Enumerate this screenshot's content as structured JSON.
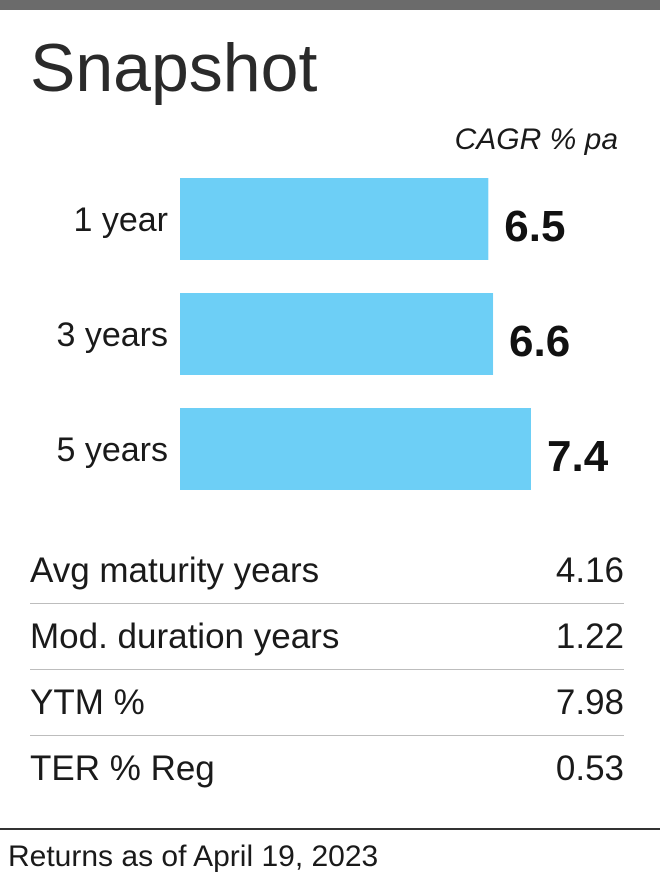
{
  "title": "Snapshot",
  "unit_label": "CAGR % pa",
  "colors": {
    "bar": "#6DCFF6",
    "top_rule": "#6b6b6b"
  },
  "chart_data": {
    "type": "bar",
    "orientation": "horizontal",
    "categories": [
      "1 year",
      "3 years",
      "5 years"
    ],
    "values": [
      6.5,
      6.6,
      7.4
    ],
    "value_labels": [
      "6.5",
      "6.6",
      "7.4"
    ],
    "title": "Snapshot",
    "xlabel": "CAGR % pa",
    "ylabel": "",
    "grid": false,
    "legend": "none"
  },
  "stats": [
    {
      "label": "Avg maturity years",
      "value": "4.16"
    },
    {
      "label": "Mod. duration years",
      "value": "1.22"
    },
    {
      "label": "YTM %",
      "value": "7.98"
    },
    {
      "label": "TER % Reg",
      "value": "0.53"
    }
  ],
  "footer": "Returns as of April 19, 2023"
}
